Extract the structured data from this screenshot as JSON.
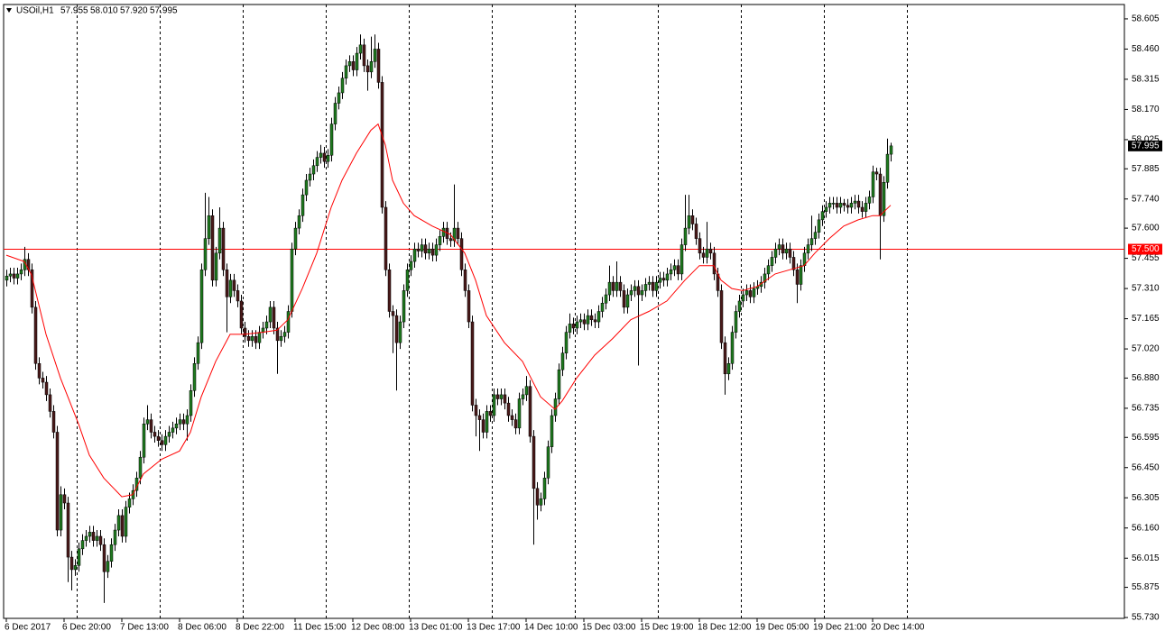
{
  "chart_data": {
    "type": "candlestick",
    "symbol": "USOil,H1",
    "header_values": [
      "57.955",
      "58.010",
      "57.920",
      "57.995"
    ],
    "up_color": "#1f7a1f",
    "down_color": "#4a1a1a",
    "wick_color": "#000000",
    "open": [
      57.35,
      57.37,
      57.38,
      57.36,
      57.38,
      57.4,
      57.45,
      57.4,
      57.22,
      56.95,
      56.88,
      56.86,
      56.8,
      56.72,
      56.62,
      56.15,
      56.32,
      56.28,
      56.02,
      55.96,
      55.98,
      56.06,
      56.1,
      56.12,
      56.14,
      56.1,
      56.12,
      56.08,
      55.95,
      56.0,
      56.08,
      56.15,
      56.22,
      56.12,
      56.26,
      56.3,
      56.34,
      56.4,
      56.5,
      56.66,
      56.68,
      56.62,
      56.6,
      56.58,
      56.56,
      56.6,
      56.62,
      56.64,
      56.66,
      56.68,
      56.66,
      56.7,
      56.82,
      56.95,
      57.05,
      57.4,
      57.55,
      57.66,
      57.35,
      57.48,
      57.6,
      57.4,
      57.27,
      57.35,
      57.3,
      57.25,
      57.12,
      57.08,
      57.06,
      57.08,
      57.05,
      57.1,
      57.12,
      57.15,
      57.22,
      57.12,
      57.06,
      57.08,
      57.1,
      57.2,
      57.5,
      57.6,
      57.66,
      57.76,
      57.83,
      57.86,
      57.9,
      57.94,
      57.96,
      57.92,
      57.95,
      58.1,
      58.2,
      58.25,
      58.32,
      58.38,
      58.4,
      58.36,
      58.44,
      58.48,
      58.38,
      58.35,
      58.4,
      58.46,
      58.3,
      57.7,
      57.4,
      57.2,
      57.18,
      57.05,
      57.15,
      57.3,
      57.4,
      57.44,
      57.5,
      57.49,
      57.52,
      57.48,
      57.5,
      57.47,
      57.52,
      57.56,
      57.6,
      57.55,
      57.54,
      57.6,
      57.55,
      57.4,
      57.3,
      57.15,
      56.75,
      56.7,
      56.68,
      56.62,
      56.72,
      56.7,
      56.8,
      56.78,
      56.8,
      56.76,
      56.7,
      56.68,
      56.64,
      56.78,
      56.8,
      56.84,
      56.6,
      56.35,
      56.27,
      56.3,
      56.4,
      56.55,
      56.7,
      56.78,
      56.92,
      57.0,
      57.1,
      57.14,
      57.12,
      57.15,
      57.16,
      57.14,
      57.18,
      57.16,
      57.15,
      57.2,
      57.24,
      57.28,
      57.34,
      57.3,
      57.34,
      57.3,
      57.22,
      57.28,
      57.3,
      57.32,
      57.28,
      57.3,
      57.33,
      57.34,
      57.3,
      57.34,
      57.36,
      57.35,
      57.38,
      57.4,
      57.42,
      57.38,
      57.52,
      57.6,
      57.66,
      57.62,
      57.55,
      57.48,
      57.46,
      57.5,
      57.48,
      57.38,
      57.3,
      57.05,
      56.9,
      56.95,
      57.1,
      57.2,
      57.25,
      57.28,
      57.3,
      57.27,
      57.31,
      57.32,
      57.34,
      57.38,
      57.42,
      57.46,
      57.5,
      57.52,
      57.48,
      57.5,
      57.46,
      57.4,
      57.33,
      57.42,
      57.48,
      57.52,
      57.55,
      57.58,
      57.64,
      57.68,
      57.7,
      57.72,
      57.72,
      57.7,
      57.72,
      57.71,
      57.7,
      57.72,
      57.73,
      57.7,
      57.68,
      57.72,
      57.75,
      57.87,
      57.86,
      57.66,
      57.82,
      57.955
    ],
    "high": [
      57.4,
      57.41,
      57.41,
      57.41,
      57.43,
      57.51,
      57.48,
      57.43,
      57.25,
      56.98,
      56.91,
      56.89,
      56.83,
      56.75,
      56.65,
      56.36,
      56.35,
      56.31,
      56.05,
      56.01,
      56.09,
      56.13,
      56.15,
      56.17,
      56.17,
      56.15,
      56.15,
      56.11,
      56.03,
      56.11,
      56.18,
      56.25,
      56.25,
      56.29,
      56.33,
      56.37,
      56.43,
      56.53,
      56.69,
      56.75,
      56.71,
      56.65,
      56.63,
      56.61,
      56.63,
      56.65,
      56.67,
      56.69,
      56.71,
      56.71,
      56.73,
      56.85,
      56.98,
      57.08,
      57.43,
      57.77,
      57.75,
      57.69,
      57.51,
      57.7,
      57.63,
      57.43,
      57.38,
      57.38,
      57.33,
      57.28,
      57.15,
      57.11,
      57.11,
      57.11,
      57.13,
      57.15,
      57.18,
      57.25,
      57.25,
      57.15,
      57.11,
      57.13,
      57.23,
      57.53,
      57.63,
      57.69,
      57.79,
      57.86,
      57.89,
      57.93,
      57.97,
      58.0,
      57.99,
      57.98,
      58.13,
      58.23,
      58.28,
      58.35,
      58.41,
      58.43,
      58.43,
      58.47,
      58.53,
      58.51,
      58.41,
      58.52,
      58.53,
      58.49,
      58.33,
      57.73,
      57.43,
      57.23,
      57.21,
      57.18,
      57.33,
      57.43,
      57.47,
      57.53,
      57.53,
      57.55,
      57.55,
      57.53,
      57.53,
      57.55,
      57.59,
      57.63,
      57.63,
      57.58,
      57.81,
      57.63,
      57.58,
      57.43,
      57.33,
      57.18,
      56.78,
      56.73,
      56.71,
      56.75,
      56.75,
      56.83,
      56.83,
      56.83,
      56.83,
      56.79,
      56.73,
      56.71,
      56.81,
      56.83,
      56.89,
      56.87,
      56.63,
      56.38,
      56.33,
      56.43,
      56.58,
      56.73,
      56.81,
      56.95,
      57.03,
      57.13,
      57.19,
      57.17,
      57.18,
      57.19,
      57.19,
      57.21,
      57.21,
      57.19,
      57.23,
      57.27,
      57.31,
      57.42,
      57.37,
      57.44,
      57.37,
      57.33,
      57.31,
      57.33,
      57.35,
      57.35,
      57.33,
      57.36,
      57.37,
      57.37,
      57.37,
      57.39,
      57.39,
      57.41,
      57.43,
      57.45,
      57.45,
      57.55,
      57.76,
      57.76,
      57.69,
      57.65,
      57.58,
      57.51,
      57.63,
      57.53,
      57.51,
      57.41,
      57.33,
      57.08,
      56.98,
      57.13,
      57.23,
      57.28,
      57.31,
      57.33,
      57.33,
      57.34,
      57.35,
      57.37,
      57.41,
      57.45,
      57.49,
      57.53,
      57.55,
      57.55,
      57.53,
      57.53,
      57.49,
      57.43,
      57.45,
      57.51,
      57.55,
      57.66,
      57.61,
      57.67,
      57.71,
      57.73,
      57.75,
      57.75,
      57.75,
      57.75,
      57.74,
      57.74,
      57.75,
      57.76,
      57.76,
      57.73,
      57.75,
      57.78,
      57.9,
      57.89,
      57.89,
      57.85,
      58.03,
      58.01
    ],
    "low": [
      57.32,
      57.34,
      57.33,
      57.33,
      57.35,
      57.37,
      57.37,
      57.19,
      56.92,
      56.85,
      56.83,
      56.77,
      56.69,
      56.59,
      56.12,
      56.12,
      56.25,
      55.9,
      55.86,
      55.93,
      55.95,
      56.03,
      56.07,
      56.09,
      56.07,
      56.07,
      56.05,
      55.8,
      55.92,
      55.97,
      56.05,
      56.12,
      56.09,
      56.09,
      56.23,
      56.27,
      56.31,
      56.37,
      56.47,
      56.63,
      56.59,
      56.57,
      56.55,
      56.53,
      56.53,
      56.57,
      56.59,
      56.61,
      56.63,
      56.63,
      56.58,
      56.67,
      56.79,
      56.92,
      57.02,
      57.37,
      57.52,
      57.32,
      57.32,
      57.45,
      57.37,
      57.1,
      57.24,
      57.27,
      57.22,
      57.09,
      57.05,
      57.03,
      57.03,
      57.02,
      57.02,
      57.07,
      57.09,
      57.12,
      57.09,
      56.9,
      57.03,
      57.05,
      57.07,
      57.17,
      57.47,
      57.57,
      57.63,
      57.73,
      57.8,
      57.83,
      57.87,
      57.91,
      57.89,
      57.89,
      57.92,
      58.07,
      58.17,
      58.22,
      58.29,
      58.35,
      58.33,
      58.33,
      58.41,
      58.35,
      58.26,
      58.32,
      58.37,
      58.27,
      57.67,
      57.37,
      57.17,
      57.0,
      56.82,
      57.02,
      57.12,
      57.27,
      57.37,
      57.41,
      57.46,
      57.46,
      57.45,
      57.45,
      57.44,
      57.44,
      57.49,
      57.53,
      57.52,
      57.51,
      57.51,
      57.52,
      57.37,
      57.27,
      57.12,
      56.72,
      56.6,
      56.53,
      56.59,
      56.59,
      56.67,
      56.67,
      56.75,
      56.75,
      56.73,
      56.67,
      56.65,
      56.61,
      56.61,
      56.75,
      56.77,
      56.57,
      56.08,
      56.2,
      56.24,
      56.27,
      56.37,
      56.52,
      56.67,
      56.75,
      56.89,
      56.97,
      57.07,
      57.09,
      57.09,
      57.12,
      57.11,
      57.11,
      57.13,
      57.12,
      57.12,
      57.17,
      57.21,
      57.25,
      57.27,
      57.27,
      57.27,
      57.19,
      57.19,
      57.25,
      57.27,
      56.94,
      57.25,
      57.27,
      57.3,
      57.27,
      57.27,
      57.31,
      57.32,
      57.32,
      57.35,
      57.37,
      57.35,
      57.35,
      57.49,
      57.57,
      57.59,
      57.52,
      57.45,
      57.43,
      57.43,
      57.45,
      57.35,
      57.27,
      57.02,
      56.8,
      56.87,
      56.92,
      57.07,
      57.17,
      57.22,
      57.25,
      57.24,
      57.24,
      57.28,
      57.29,
      57.31,
      57.35,
      57.39,
      57.43,
      57.47,
      57.45,
      57.45,
      57.43,
      57.37,
      57.24,
      57.3,
      57.39,
      57.45,
      57.49,
      57.52,
      57.55,
      57.61,
      57.65,
      57.67,
      57.69,
      57.67,
      57.67,
      57.68,
      57.67,
      57.67,
      57.69,
      57.67,
      57.65,
      57.65,
      57.69,
      57.72,
      57.83,
      57.45,
      57.63,
      57.79,
      57.92
    ],
    "close": [
      57.37,
      57.38,
      57.36,
      57.38,
      57.4,
      57.45,
      57.4,
      57.22,
      56.95,
      56.88,
      56.86,
      56.8,
      56.72,
      56.62,
      56.15,
      56.32,
      56.28,
      56.02,
      55.96,
      55.98,
      56.06,
      56.1,
      56.12,
      56.14,
      56.1,
      56.12,
      56.08,
      55.95,
      56.0,
      56.08,
      56.15,
      56.22,
      56.12,
      56.26,
      56.3,
      56.34,
      56.4,
      56.5,
      56.66,
      56.68,
      56.62,
      56.6,
      56.58,
      56.56,
      56.6,
      56.62,
      56.64,
      56.66,
      56.68,
      56.66,
      56.7,
      56.82,
      56.95,
      57.05,
      57.4,
      57.55,
      57.66,
      57.35,
      57.48,
      57.6,
      57.4,
      57.27,
      57.35,
      57.3,
      57.25,
      57.12,
      57.08,
      57.06,
      57.08,
      57.05,
      57.1,
      57.12,
      57.15,
      57.22,
      57.12,
      57.06,
      57.08,
      57.1,
      57.2,
      57.5,
      57.6,
      57.66,
      57.76,
      57.83,
      57.86,
      57.9,
      57.94,
      57.96,
      57.92,
      57.95,
      58.1,
      58.2,
      58.25,
      58.32,
      58.38,
      58.4,
      58.36,
      58.44,
      58.48,
      58.38,
      58.35,
      58.4,
      58.46,
      58.3,
      57.7,
      57.4,
      57.2,
      57.18,
      57.05,
      57.15,
      57.3,
      57.4,
      57.44,
      57.5,
      57.49,
      57.52,
      57.48,
      57.5,
      57.47,
      57.52,
      57.56,
      57.6,
      57.55,
      57.54,
      57.6,
      57.55,
      57.4,
      57.3,
      57.15,
      56.75,
      56.7,
      56.68,
      56.62,
      56.72,
      56.7,
      56.8,
      56.78,
      56.8,
      56.76,
      56.7,
      56.68,
      56.64,
      56.78,
      56.8,
      56.84,
      56.6,
      56.35,
      56.27,
      56.3,
      56.4,
      56.55,
      56.7,
      56.78,
      56.92,
      57.0,
      57.1,
      57.14,
      57.12,
      57.15,
      57.16,
      57.14,
      57.18,
      57.16,
      57.15,
      57.2,
      57.24,
      57.28,
      57.34,
      57.3,
      57.34,
      57.3,
      57.22,
      57.28,
      57.3,
      57.32,
      57.28,
      57.3,
      57.33,
      57.34,
      57.3,
      57.34,
      57.36,
      57.35,
      57.38,
      57.4,
      57.42,
      57.38,
      57.52,
      57.6,
      57.66,
      57.62,
      57.55,
      57.48,
      57.46,
      57.5,
      57.48,
      57.38,
      57.3,
      57.05,
      56.9,
      56.95,
      57.1,
      57.2,
      57.25,
      57.28,
      57.3,
      57.27,
      57.31,
      57.32,
      57.34,
      57.38,
      57.42,
      57.46,
      57.5,
      57.52,
      57.48,
      57.5,
      57.46,
      57.4,
      57.33,
      57.42,
      57.48,
      57.52,
      57.55,
      57.58,
      57.64,
      57.68,
      57.7,
      57.72,
      57.72,
      57.7,
      57.72,
      57.71,
      57.7,
      57.72,
      57.73,
      57.7,
      57.68,
      57.72,
      57.75,
      57.87,
      57.86,
      57.66,
      57.82,
      57.955,
      57.995
    ],
    "ma": {
      "color": "#ff0000",
      "x": [
        0,
        5,
        7,
        11,
        15,
        20,
        23,
        27,
        32,
        35,
        38,
        43,
        48,
        51,
        54,
        58,
        62,
        66,
        71,
        75,
        78,
        82,
        86,
        90,
        93,
        97,
        101,
        103,
        105,
        107,
        110,
        113,
        118,
        123,
        127,
        130,
        133,
        138,
        143,
        148,
        152,
        154,
        158,
        163,
        168,
        173,
        178,
        183,
        188,
        192,
        196,
        198,
        201,
        204,
        208,
        213,
        217,
        221,
        224,
        228,
        232,
        236,
        240,
        242,
        245
      ],
      "values": [
        57.47,
        57.44,
        57.375,
        57.09,
        56.88,
        56.66,
        56.51,
        56.4,
        56.31,
        56.32,
        56.42,
        56.49,
        56.53,
        56.62,
        56.79,
        56.96,
        57.09,
        57.09,
        57.1,
        57.11,
        57.16,
        57.31,
        57.48,
        57.7,
        57.83,
        57.96,
        58.07,
        58.1,
        58.0,
        57.83,
        57.72,
        57.66,
        57.61,
        57.57,
        57.48,
        57.35,
        57.18,
        57.05,
        56.96,
        56.79,
        56.73,
        56.77,
        56.88,
        56.99,
        57.07,
        57.16,
        57.2,
        57.25,
        57.35,
        57.42,
        57.42,
        57.35,
        57.31,
        57.3,
        57.32,
        57.38,
        57.4,
        57.42,
        57.48,
        57.55,
        57.61,
        57.64,
        57.66,
        57.66,
        57.71
      ]
    },
    "hline": {
      "value": 57.5,
      "label": "57.500",
      "color": "#ff0000"
    },
    "xlim": [
      -0.75,
      309.75
    ],
    "ylim": [
      55.726,
      58.674
    ],
    "xticks": [
      {
        "value": 0,
        "label": "6 Dec 2017"
      },
      {
        "value": 16,
        "label": "6 Dec 20:00"
      },
      {
        "value": 32,
        "label": "7 Dec 13:00"
      },
      {
        "value": 48,
        "label": "8 Dec 06:00"
      },
      {
        "value": 64,
        "label": "8 Dec 22:00"
      },
      {
        "value": 80,
        "label": "11 Dec 15:00"
      },
      {
        "value": 96,
        "label": "12 Dec 08:00"
      },
      {
        "value": 112,
        "label": "13 Dec 01:00"
      },
      {
        "value": 128,
        "label": "13 Dec 17:00"
      },
      {
        "value": 144,
        "label": "14 Dec 10:00"
      },
      {
        "value": 160,
        "label": "15 Dec 03:00"
      },
      {
        "value": 176,
        "label": "15 Dec 19:00"
      },
      {
        "value": 192,
        "label": "18 Dec 12:00"
      },
      {
        "value": 208,
        "label": "19 Dec 05:00"
      },
      {
        "value": 224,
        "label": "19 Dec 21:00"
      },
      {
        "value": 240,
        "label": "20 Dec 14:00"
      }
    ],
    "xgrid": [
      19.5,
      42.5,
      65.5,
      88.5,
      111.5,
      134.5,
      157.5,
      180.5,
      203.5,
      226.5,
      249.5
    ],
    "yticks": [
      58.605,
      {
        "value": 58.46,
        "label": "58.460"
      },
      58.315,
      {
        "value": 58.17,
        "label": "58.170"
      },
      58.025,
      57.885,
      {
        "value": 57.74,
        "label": "57.740"
      },
      {
        "value": 57.6,
        "label": "57.600"
      },
      57.455,
      {
        "value": 57.31,
        "label": "57.310"
      },
      57.165,
      {
        "value": 57.02,
        "label": "57.020"
      },
      {
        "value": 56.88,
        "label": "56.880"
      },
      56.735,
      56.595,
      {
        "value": 56.45,
        "label": "56.450"
      },
      56.305,
      {
        "value": 56.16,
        "label": "56.160"
      },
      56.015,
      55.875,
      {
        "value": 55.73,
        "label": "55.730"
      }
    ]
  }
}
